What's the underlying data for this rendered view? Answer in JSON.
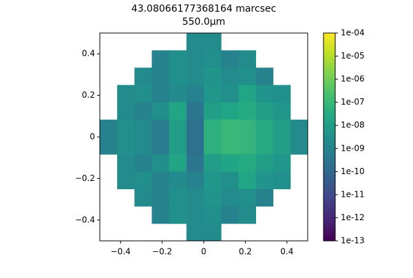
{
  "chart_data": {
    "type": "heatmap",
    "title": "43.08066177368164 marcsec",
    "subtitle": "550.0μm",
    "xlim": [
      -0.5,
      0.5
    ],
    "ylim": [
      -0.5,
      0.5
    ],
    "xticks": [
      {
        "value": -0.4,
        "label": "−0.4"
      },
      {
        "value": -0.2,
        "label": "−0.2"
      },
      0.0,
      0.2,
      0.4
    ],
    "yticks": [
      {
        "value": -0.4,
        "label": "−0.4"
      },
      {
        "value": -0.2,
        "label": "−0.2"
      },
      0.0,
      0.2,
      0.4
    ],
    "cmap": "viridis",
    "color_scale": "log",
    "clim": [
      1e-13,
      0.0001
    ],
    "cticks": [
      {
        "value": 1e-13,
        "label": "1e-13"
      },
      {
        "value": 1e-12,
        "label": "1e-12"
      },
      {
        "value": 1e-11,
        "label": "1e-11"
      },
      {
        "value": 1e-10,
        "label": "1e-10"
      },
      {
        "value": 1e-09,
        "label": "1e-09"
      },
      {
        "value": 1e-08,
        "label": "1e-08"
      },
      {
        "value": 1e-07,
        "label": "1e-07"
      },
      {
        "value": 1e-06,
        "label": "1e-06"
      },
      {
        "value": 1e-05,
        "label": "1e-05"
      },
      {
        "value": 0.0001,
        "label": "1e-04"
      }
    ],
    "z": [
      [
        null,
        null,
        null,
        null,
        null,
        2e-09,
        2e-09,
        null,
        null,
        null,
        null,
        null
      ],
      [
        null,
        null,
        null,
        1e-09,
        3e-09,
        2e-09,
        3e-09,
        1e-09,
        2e-09,
        null,
        null,
        null
      ],
      [
        null,
        null,
        2e-09,
        1e-09,
        3e-09,
        2e-09,
        4e-09,
        2e-09,
        3e-09,
        1e-09,
        null,
        null
      ],
      [
        null,
        2e-09,
        3e-09,
        1e-09,
        2e-09,
        1e-09,
        5e-09,
        3e-09,
        2e-08,
        4e-09,
        3e-09,
        null
      ],
      [
        null,
        2e-09,
        1e-09,
        3e-09,
        2e-08,
        3e-10,
        1e-08,
        2e-08,
        3e-08,
        1e-08,
        5e-09,
        null
      ],
      [
        1e-09,
        3e-09,
        2e-09,
        5e-10,
        1e-08,
        2e-10,
        5e-08,
        1e-07,
        8e-08,
        3e-08,
        1e-08,
        2e-09
      ],
      [
        1e-09,
        3e-09,
        2e-09,
        5e-10,
        1e-08,
        2e-10,
        5e-08,
        1e-07,
        8e-08,
        3e-08,
        1e-08,
        2e-09
      ],
      [
        null,
        2e-09,
        1e-09,
        3e-09,
        2e-08,
        3e-10,
        1e-08,
        2e-08,
        3e-08,
        1e-08,
        5e-09,
        null
      ],
      [
        null,
        2e-09,
        3e-09,
        1e-09,
        2e-09,
        1e-09,
        5e-09,
        3e-09,
        2e-08,
        4e-09,
        3e-09,
        null
      ],
      [
        null,
        null,
        2e-09,
        1e-09,
        3e-09,
        2e-09,
        4e-09,
        2e-09,
        3e-09,
        1e-09,
        null,
        null
      ],
      [
        null,
        null,
        null,
        1e-09,
        3e-09,
        2e-09,
        3e-09,
        1e-09,
        2e-09,
        null,
        null,
        null
      ],
      [
        null,
        null,
        null,
        null,
        null,
        2e-09,
        2e-09,
        null,
        null,
        null,
        null,
        null
      ]
    ]
  }
}
